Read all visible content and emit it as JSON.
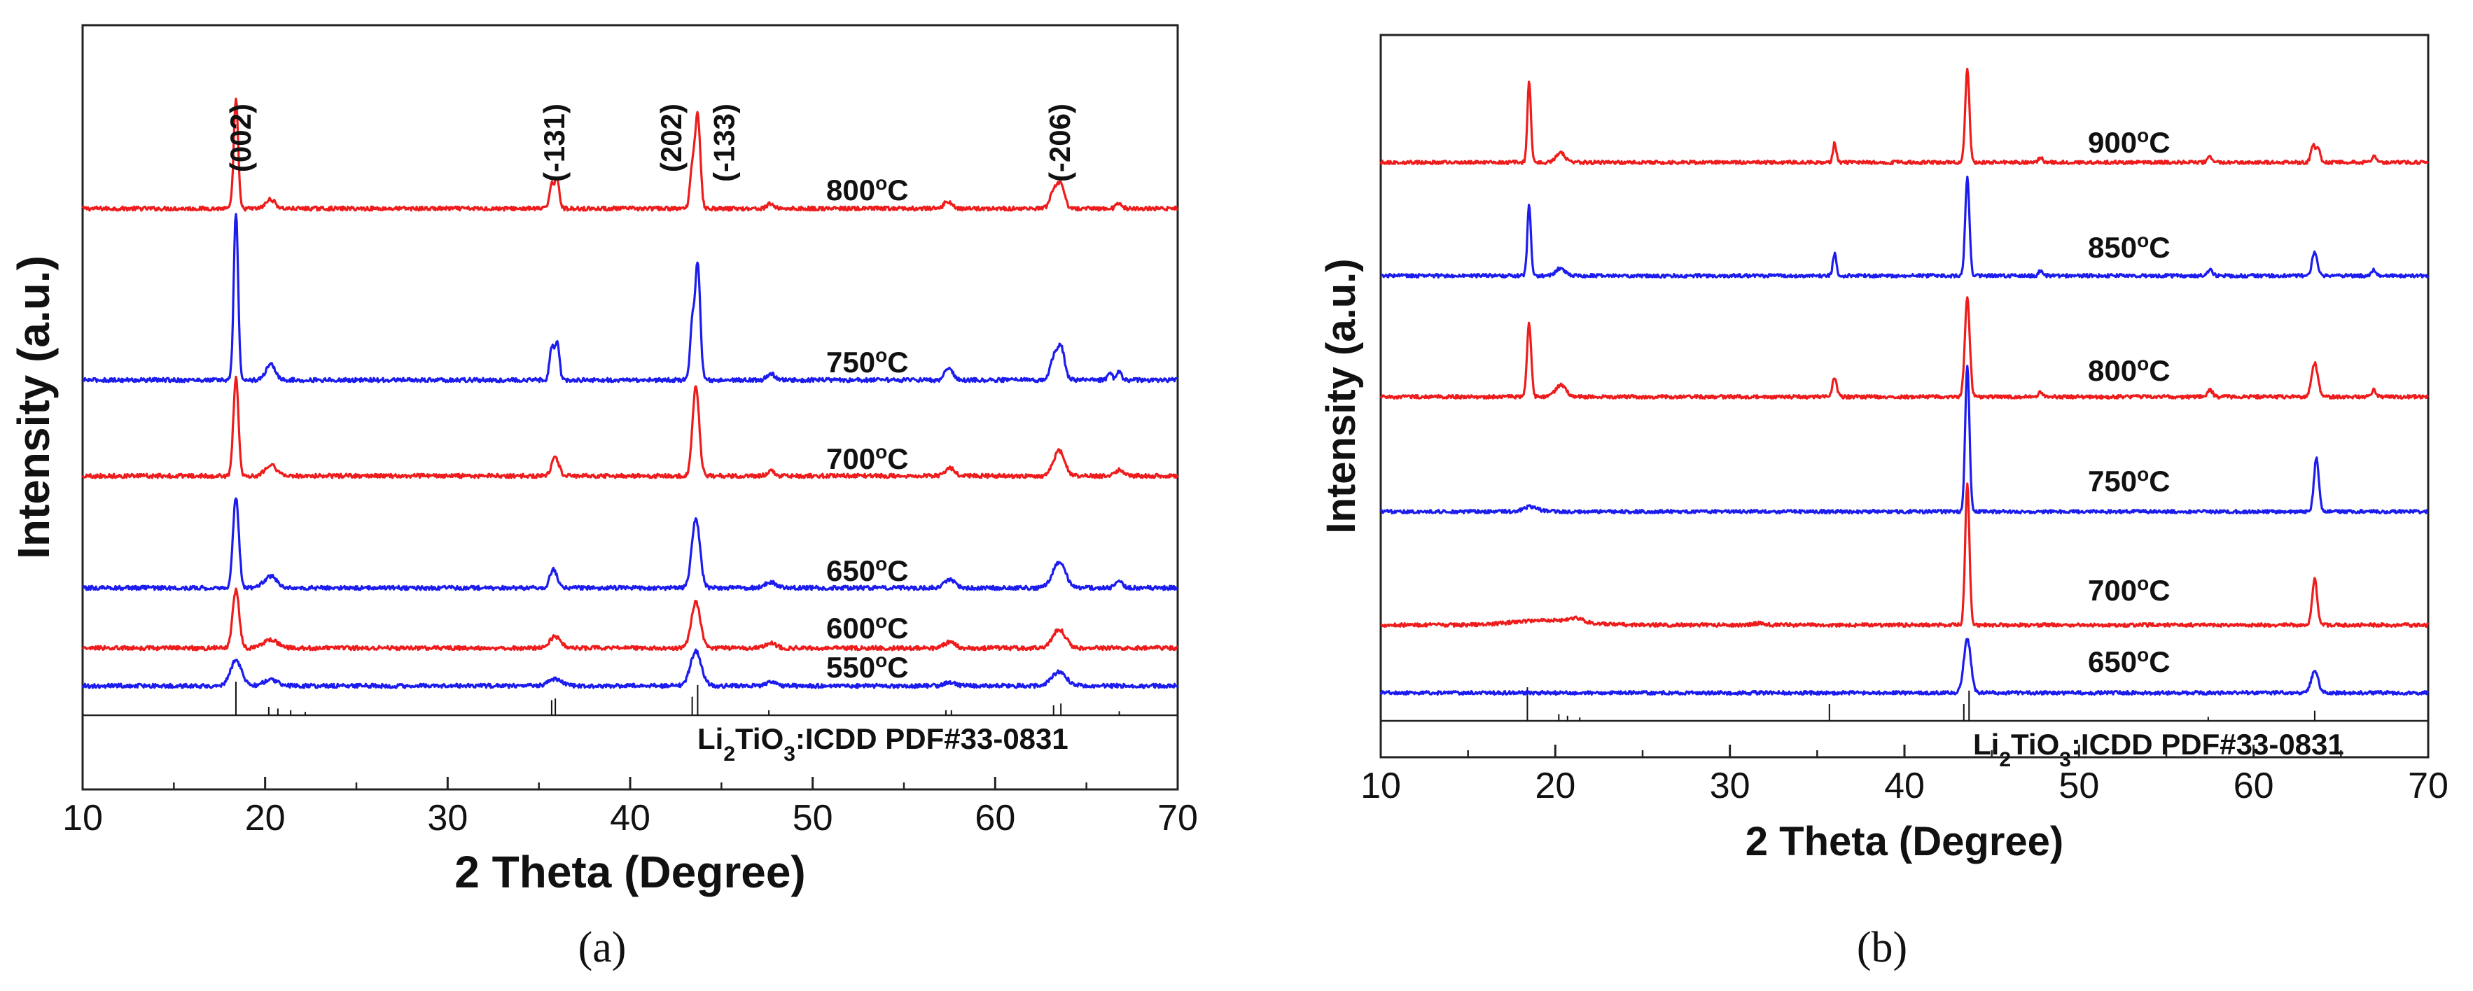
{
  "chart_data": [
    {
      "panel": "a",
      "type": "line",
      "panel_label": "(a)",
      "xlabel": "2 Theta (Degree)",
      "ylabel": "Intensity (a.u.)",
      "xlim": [
        10,
        70
      ],
      "xticks": [
        10,
        20,
        30,
        40,
        50,
        60,
        70
      ],
      "reference_label_prefix": "Li",
      "reference_label_sub1": "2",
      "reference_label_mid": "TiO",
      "reference_label_sub2": "3",
      "reference_label_suffix": ":ICDD PDF#33-0831",
      "reference_lines": [
        {
          "x": 18.4,
          "h": 1.0
        },
        {
          "x": 20.2,
          "h": 0.25
        },
        {
          "x": 20.7,
          "h": 0.2
        },
        {
          "x": 21.4,
          "h": 0.15
        },
        {
          "x": 22.2,
          "h": 0.1
        },
        {
          "x": 35.7,
          "h": 0.45
        },
        {
          "x": 35.9,
          "h": 0.5
        },
        {
          "x": 43.4,
          "h": 0.55
        },
        {
          "x": 43.7,
          "h": 0.9
        },
        {
          "x": 47.6,
          "h": 0.15
        },
        {
          "x": 57.3,
          "h": 0.15
        },
        {
          "x": 57.6,
          "h": 0.15
        },
        {
          "x": 63.2,
          "h": 0.3
        },
        {
          "x": 63.6,
          "h": 0.35
        },
        {
          "x": 66.8,
          "h": 0.12
        }
      ],
      "peak_labels": [
        {
          "x": 19.2,
          "text": "(002)"
        },
        {
          "x": 36.4,
          "text": "(-131)"
        },
        {
          "x": 42.8,
          "text": "(202)"
        },
        {
          "x": 45.7,
          "text": "(-133)"
        },
        {
          "x": 64.1,
          "text": "(-206)"
        }
      ],
      "series": [
        {
          "name": "800°C",
          "temp": "800",
          "color": "#ee1c1c",
          "peaks": [
            [
              18.4,
              0.95,
              0.12
            ],
            [
              20.3,
              0.08,
              0.25
            ],
            [
              35.7,
              0.22,
              0.12
            ],
            [
              36.0,
              0.26,
              0.12
            ],
            [
              43.4,
              0.35,
              0.12
            ],
            [
              43.7,
              0.82,
              0.14
            ],
            [
              47.7,
              0.04,
              0.2
            ],
            [
              57.3,
              0.05,
              0.15
            ],
            [
              57.6,
              0.04,
              0.15
            ],
            [
              63.2,
              0.14,
              0.2
            ],
            [
              63.6,
              0.2,
              0.2
            ],
            [
              66.8,
              0.05,
              0.15
            ]
          ]
        },
        {
          "name": "750°C",
          "temp": "750",
          "color": "#1c1cee",
          "peaks": [
            [
              18.4,
              1.45,
              0.12
            ],
            [
              20.3,
              0.14,
              0.25
            ],
            [
              35.7,
              0.28,
              0.12
            ],
            [
              36.0,
              0.32,
              0.12
            ],
            [
              43.4,
              0.45,
              0.12
            ],
            [
              43.7,
              1.0,
              0.14
            ],
            [
              47.7,
              0.06,
              0.2
            ],
            [
              57.3,
              0.08,
              0.15
            ],
            [
              57.6,
              0.07,
              0.15
            ],
            [
              63.2,
              0.18,
              0.2
            ],
            [
              63.6,
              0.28,
              0.2
            ],
            [
              66.3,
              0.05,
              0.12
            ],
            [
              66.8,
              0.08,
              0.12
            ]
          ]
        },
        {
          "name": "700°C",
          "temp": "700",
          "color": "#ee1c1c",
          "peaks": [
            [
              18.4,
              0.85,
              0.14
            ],
            [
              20.3,
              0.1,
              0.3
            ],
            [
              35.9,
              0.16,
              0.2
            ],
            [
              43.6,
              0.78,
              0.18
            ],
            [
              47.7,
              0.04,
              0.2
            ],
            [
              57.5,
              0.07,
              0.25
            ],
            [
              63.5,
              0.22,
              0.3
            ],
            [
              66.8,
              0.05,
              0.2
            ]
          ]
        },
        {
          "name": "650°C",
          "temp": "650",
          "color": "#1c1cee",
          "peaks": [
            [
              18.4,
              0.78,
              0.16
            ],
            [
              20.3,
              0.1,
              0.35
            ],
            [
              35.8,
              0.16,
              0.2
            ],
            [
              43.6,
              0.6,
              0.22
            ],
            [
              47.7,
              0.05,
              0.3
            ],
            [
              57.5,
              0.07,
              0.3
            ],
            [
              63.5,
              0.22,
              0.35
            ],
            [
              66.8,
              0.05,
              0.2
            ]
          ]
        },
        {
          "name": "600°C",
          "temp": "600",
          "color": "#ee1c1c",
          "peaks": [
            [
              18.4,
              0.5,
              0.18
            ],
            [
              20.3,
              0.07,
              0.4
            ],
            [
              35.9,
              0.1,
              0.3
            ],
            [
              43.6,
              0.4,
              0.25
            ],
            [
              47.7,
              0.04,
              0.3
            ],
            [
              57.5,
              0.05,
              0.3
            ],
            [
              63.5,
              0.16,
              0.35
            ]
          ]
        },
        {
          "name": "550°C",
          "temp": "550",
          "color": "#1c1cee",
          "peaks": [
            [
              18.4,
              0.22,
              0.3
            ],
            [
              20.3,
              0.05,
              0.4
            ],
            [
              35.9,
              0.06,
              0.35
            ],
            [
              43.6,
              0.3,
              0.3
            ],
            [
              47.7,
              0.03,
              0.3
            ],
            [
              57.5,
              0.03,
              0.3
            ],
            [
              63.5,
              0.12,
              0.4
            ]
          ]
        }
      ]
    },
    {
      "panel": "b",
      "type": "line",
      "panel_label": "(b)",
      "xlabel": "2 Theta (Degree)",
      "ylabel": "Intensity (a.u.)",
      "xlim": [
        10,
        70
      ],
      "xticks": [
        10,
        20,
        30,
        40,
        50,
        60,
        70
      ],
      "reference_label_prefix": "Li",
      "reference_label_sub1": "2",
      "reference_label_mid": "TiO",
      "reference_label_sub2": "3",
      "reference_label_suffix": ":ICDD PDF#33-0831",
      "reference_lines": [
        {
          "x": 18.4,
          "h": 1.0
        },
        {
          "x": 20.2,
          "h": 0.2
        },
        {
          "x": 20.7,
          "h": 0.15
        },
        {
          "x": 21.4,
          "h": 0.1
        },
        {
          "x": 35.7,
          "h": 0.5
        },
        {
          "x": 43.4,
          "h": 0.5
        },
        {
          "x": 43.7,
          "h": 0.9
        },
        {
          "x": 57.4,
          "h": 0.12
        },
        {
          "x": 63.5,
          "h": 0.3
        }
      ],
      "series": [
        {
          "name": "900°C",
          "temp": "900",
          "color": "#ee1c1c",
          "peaks": [
            [
              18.5,
              0.82,
              0.1
            ],
            [
              20.3,
              0.1,
              0.25
            ],
            [
              36.0,
              0.2,
              0.1
            ],
            [
              43.6,
              0.95,
              0.12
            ],
            [
              47.8,
              0.05,
              0.12
            ],
            [
              57.5,
              0.05,
              0.15
            ],
            [
              63.4,
              0.18,
              0.12
            ],
            [
              63.7,
              0.13,
              0.12
            ],
            [
              66.9,
              0.06,
              0.12
            ]
          ]
        },
        {
          "name": "850°C",
          "temp": "850",
          "color": "#1c1cee",
          "peaks": [
            [
              18.5,
              0.72,
              0.1
            ],
            [
              20.3,
              0.08,
              0.25
            ],
            [
              36.0,
              0.23,
              0.1
            ],
            [
              43.6,
              1.0,
              0.12
            ],
            [
              47.8,
              0.05,
              0.12
            ],
            [
              57.5,
              0.06,
              0.15
            ],
            [
              63.5,
              0.25,
              0.15
            ],
            [
              66.9,
              0.06,
              0.12
            ]
          ]
        },
        {
          "name": "800°C",
          "temp": "800",
          "color": "#ee1c1c",
          "peaks": [
            [
              18.5,
              0.75,
              0.12
            ],
            [
              20.3,
              0.12,
              0.3
            ],
            [
              36.0,
              0.2,
              0.12
            ],
            [
              43.6,
              1.0,
              0.14
            ],
            [
              47.8,
              0.05,
              0.12
            ],
            [
              57.5,
              0.07,
              0.15
            ],
            [
              63.5,
              0.34,
              0.18
            ],
            [
              66.9,
              0.07,
              0.12
            ]
          ]
        },
        {
          "name": "750°C",
          "temp": "750",
          "color": "#1c1cee",
          "peaks": [
            [
              18.6,
              0.05,
              0.4
            ],
            [
              43.6,
              1.5,
              0.12
            ],
            [
              63.6,
              0.55,
              0.14
            ]
          ]
        },
        {
          "name": "700°C",
          "temp": "700",
          "color": "#ee1c1c",
          "peaks": [
            [
              19.5,
              0.05,
              1.8
            ],
            [
              21.2,
              0.04,
              0.4
            ],
            [
              31.7,
              0.02,
              0.3
            ],
            [
              43.6,
              1.45,
              0.12
            ],
            [
              63.5,
              0.47,
              0.14
            ]
          ]
        },
        {
          "name": "650°C",
          "temp": "650",
          "color": "#1c1cee",
          "peaks": [
            [
              43.6,
              0.55,
              0.2
            ],
            [
              63.5,
              0.22,
              0.2
            ]
          ]
        }
      ]
    }
  ]
}
